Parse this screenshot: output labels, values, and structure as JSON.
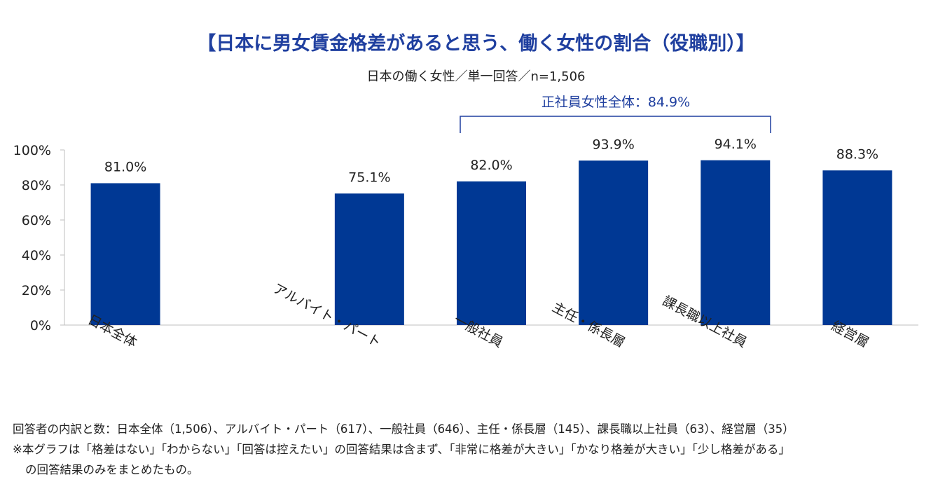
{
  "title": "【日本に男女賃金格差があると思う、働く女性の割合（役職別）】",
  "subtitle": "日本の働く女性／単一回答／n=1,506",
  "bracket_label": "正社員女性全体：84.9%",
  "colors": {
    "bar": "#003894",
    "title": "#1f3f9f",
    "bracket": "#1f3f9f",
    "axis": "#bfbfbf"
  },
  "chart_data": {
    "type": "bar",
    "title": "【日本に男女賃金格差があると思う、働く女性の割合（役職別）】",
    "categories": [
      "日本全体",
      "",
      "アルバイト・パート",
      "一般社員",
      "主任・係長層",
      "課長職以上社員",
      "経営層"
    ],
    "values": [
      81.0,
      null,
      75.1,
      82.0,
      93.9,
      94.1,
      88.3
    ],
    "data_labels": [
      "81.0%",
      "",
      "75.1%",
      "82.0%",
      "93.9%",
      "94.1%",
      "88.3%"
    ],
    "yticks": [
      "100%",
      "80%",
      "60%",
      "40%",
      "20%",
      "0%"
    ],
    "ylim": [
      0,
      100
    ],
    "xlabel": "",
    "ylabel": "",
    "grid": false
  },
  "footnotes": [
    "回答者の内訳と数：日本全体（1,506）、アルバイト・パート（617）、一般社員（646）、主任・係長層（145）、課長職以上社員（63）、経営層（35）",
    "※本グラフは「格差はない」「わからない」「回答は控えたい」の回答結果は含まず、「非常に格差が大きい」「かなり格差が大きい」「少し格差がある」",
    "の回答結果のみをまとめたもの。"
  ]
}
